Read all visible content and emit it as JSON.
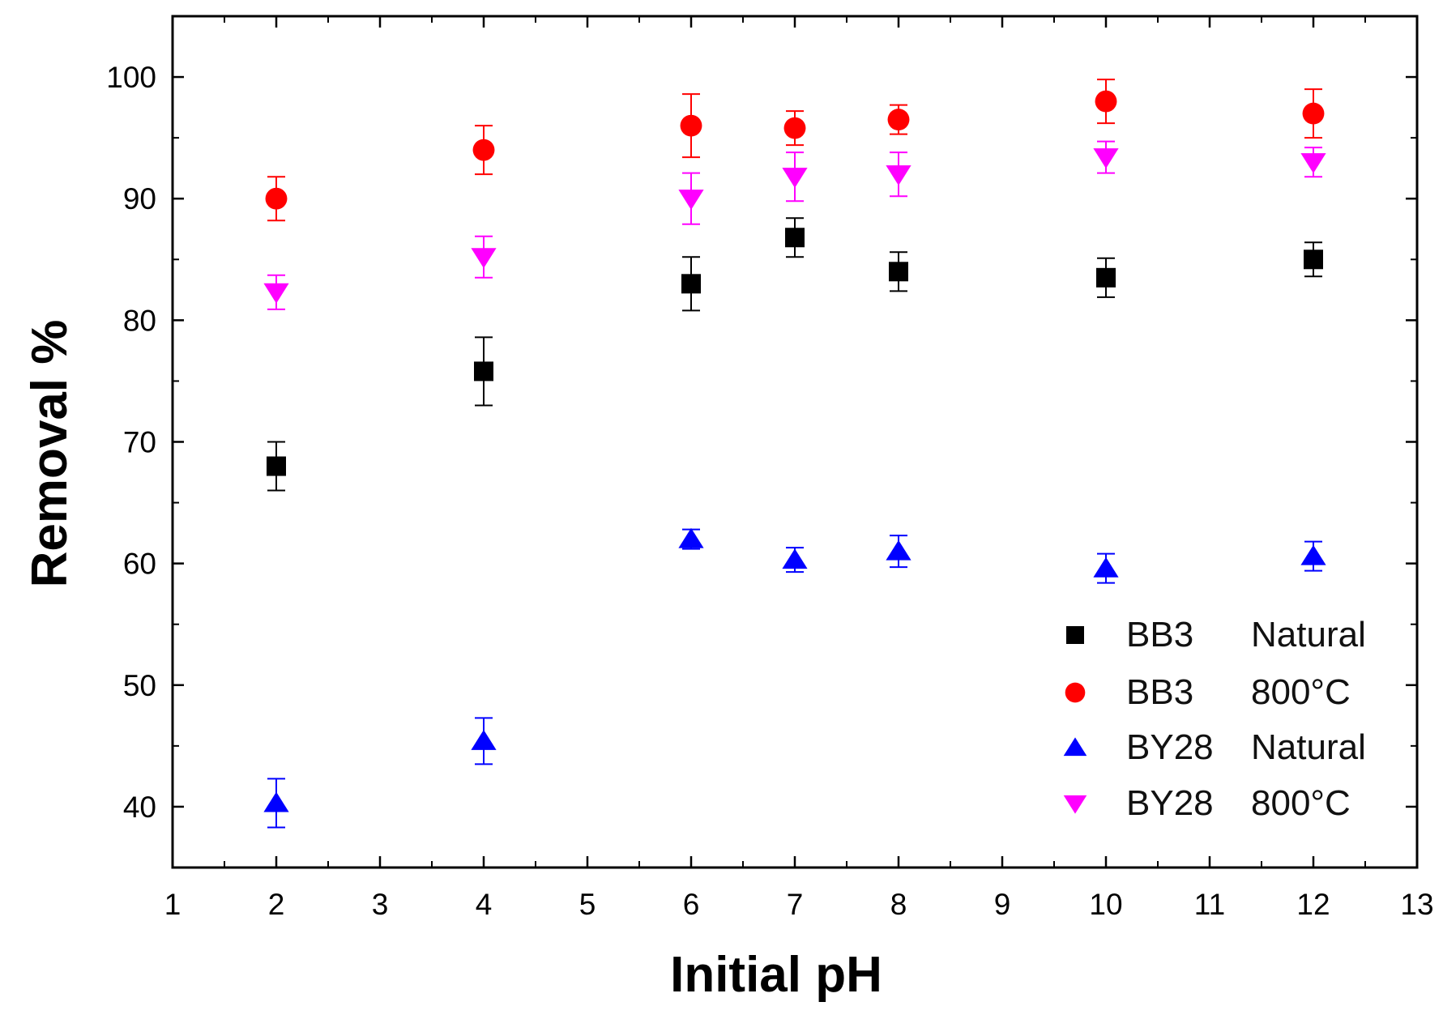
{
  "chart_data": {
    "type": "scatter",
    "title": "",
    "xlabel": "Initial pH",
    "ylabel": "Removal %",
    "xlim": [
      1,
      13
    ],
    "ylim": [
      35,
      105
    ],
    "x_ticks": [
      "1",
      "2",
      "3",
      "4",
      "5",
      "6",
      "7",
      "8",
      "9",
      "10",
      "11",
      "12",
      "13"
    ],
    "y_ticks": [
      "40",
      "50",
      "60",
      "70",
      "80",
      "90",
      "100"
    ],
    "grid": false,
    "legend_position": "bottom-right",
    "series": [
      {
        "name": "BB3 Natural",
        "legend_main": "BB3",
        "legend_suffix": "Natural",
        "marker": "square",
        "color": "#000000",
        "x": [
          2,
          4,
          6,
          7,
          8,
          10,
          12
        ],
        "y": [
          68.0,
          75.8,
          83.0,
          86.8,
          84.0,
          83.5,
          85.0
        ],
        "yerr": [
          2.0,
          2.8,
          2.2,
          1.6,
          1.6,
          1.6,
          1.4
        ]
      },
      {
        "name": "BB3 800°C",
        "legend_main": "BB3",
        "legend_suffix": "800°C",
        "marker": "circle",
        "color": "#ff0000",
        "x": [
          2,
          4,
          6,
          7,
          8,
          10,
          12
        ],
        "y": [
          90.0,
          94.0,
          96.0,
          95.8,
          96.5,
          98.0,
          97.0
        ],
        "yerr": [
          1.8,
          2.0,
          2.6,
          1.4,
          1.2,
          1.8,
          2.0
        ]
      },
      {
        "name": "BY28 Natural",
        "legend_main": "BY28",
        "legend_suffix": "Natural",
        "marker": "triangle-up",
        "color": "#0000ff",
        "x": [
          2,
          4,
          6,
          7,
          8,
          10,
          12
        ],
        "y": [
          40.3,
          45.4,
          62.0,
          60.3,
          61.0,
          59.6,
          60.6
        ],
        "yerr": [
          2.0,
          1.9,
          0.8,
          1.0,
          1.3,
          1.2,
          1.2
        ]
      },
      {
        "name": "BY28 800°C",
        "legend_main": "BY28",
        "legend_suffix": "800°C",
        "marker": "triangle-down",
        "color": "#ff00ff",
        "x": [
          2,
          4,
          6,
          7,
          8,
          10,
          12
        ],
        "y": [
          82.3,
          85.2,
          90.0,
          91.8,
          92.0,
          93.4,
          93.0
        ],
        "yerr": [
          1.4,
          1.7,
          2.1,
          2.0,
          1.8,
          1.3,
          1.2
        ]
      }
    ]
  }
}
